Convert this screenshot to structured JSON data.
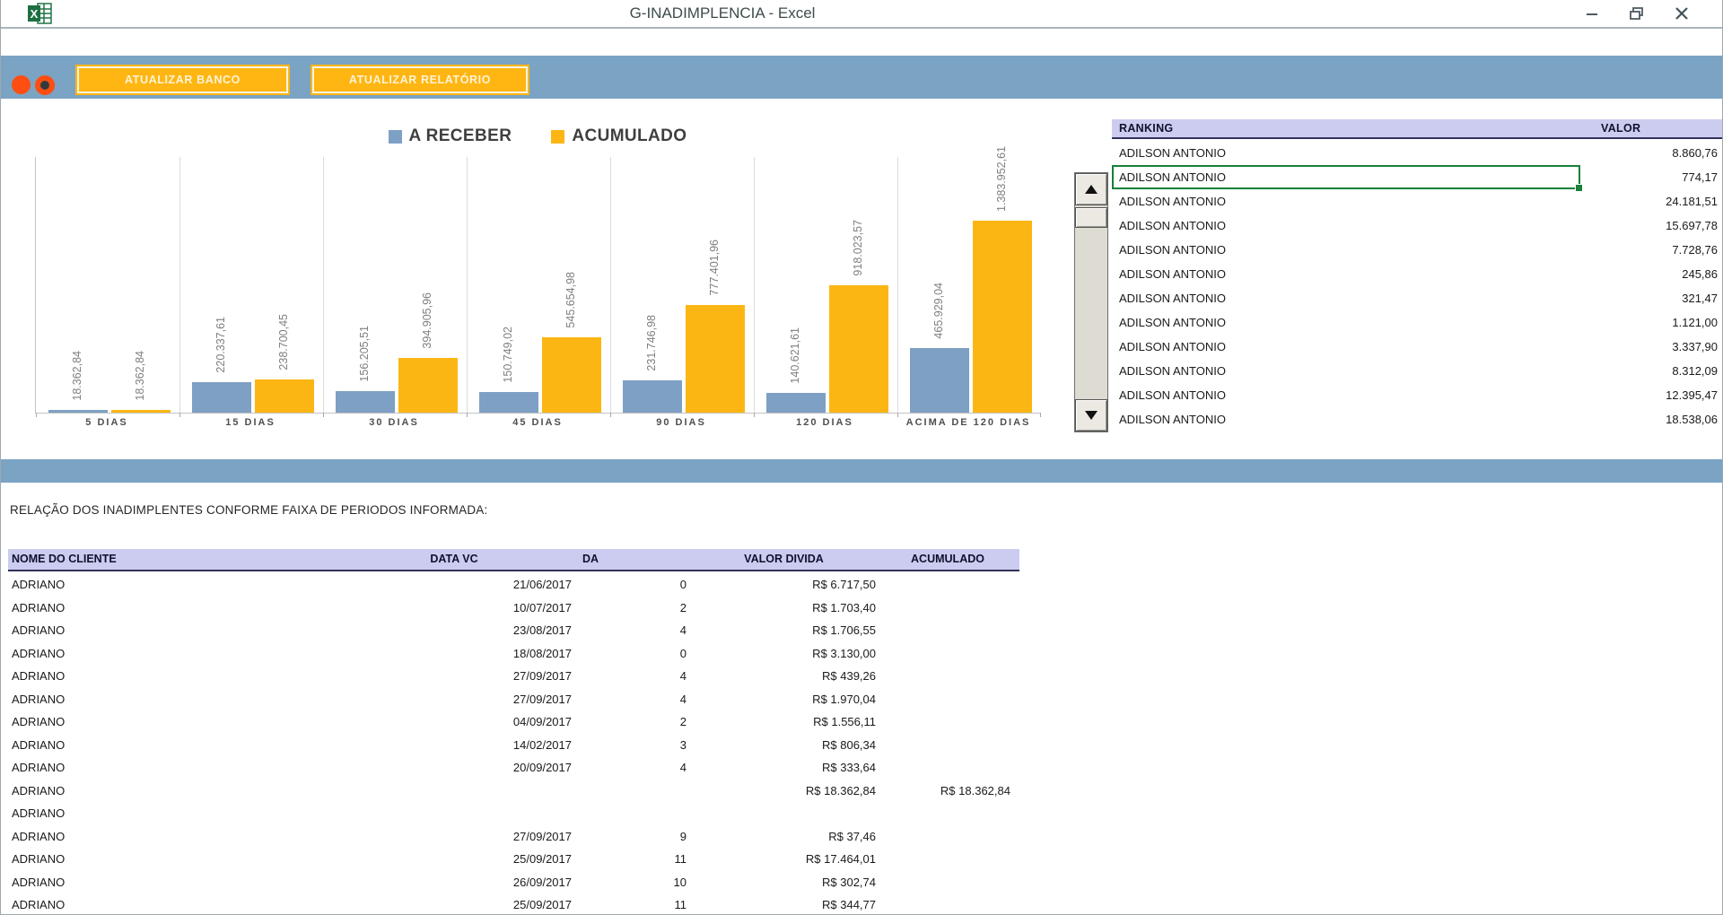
{
  "window": {
    "title": "G-INADIMPLENCIA - Excel"
  },
  "toolbar": {
    "buttons": [
      {
        "label": "ATUALIZAR BANCO"
      },
      {
        "label": "ATUALIZAR RELATÓRIO"
      }
    ]
  },
  "colors": {
    "toolbar_blue": "#7BA3C3",
    "button_orange": "#FFB612",
    "circle_red": "#FF4E12",
    "series_blue": "#7EA0C4",
    "series_orange": "#FCB614",
    "table_header_lavender": "#CCCCF0",
    "selection_green": "#188038"
  },
  "chart_data": {
    "type": "bar",
    "title": "",
    "xlabel": "",
    "ylabel": "",
    "legend_position": "top-center",
    "grid": "vertical category separators only",
    "ylim": [
      0,
      1450000
    ],
    "categories": [
      "5 DIAS",
      "15 DIAS",
      "30 DIAS",
      "45 DIAS",
      "90 DIAS",
      "120 DIAS",
      "ACIMA DE 120 DIAS"
    ],
    "series": [
      {
        "name": "A RECEBER",
        "color": "#7EA0C4",
        "values": [
          18362.84,
          220337.61,
          156205.51,
          150749.02,
          231746.98,
          140621.61,
          465929.04
        ],
        "labels": [
          "18.362,84",
          "220.337,61",
          "156.205,51",
          "150.749,02",
          "231.746,98",
          "140.621,61",
          "465.929,04"
        ]
      },
      {
        "name": "ACUMULADO",
        "color": "#FCB614",
        "values": [
          18362.84,
          238700.45,
          394905.96,
          545654.98,
          777401.96,
          918023.57,
          1383952.61
        ],
        "labels": [
          "18.362,84",
          "238.700,45",
          "394.905,96",
          "545.654,98",
          "777.401,96",
          "918.023,57",
          "1.383.952,61"
        ]
      }
    ]
  },
  "ranking": {
    "headers": {
      "name": "RANKING",
      "value": "VALOR"
    },
    "selected_index": 1,
    "rows": [
      {
        "name": "ADILSON ANTONIO",
        "value": "8.860,76"
      },
      {
        "name": "ADILSON ANTONIO",
        "value": "774,17"
      },
      {
        "name": "ADILSON ANTONIO",
        "value": "24.181,51"
      },
      {
        "name": "ADILSON ANTONIO",
        "value": "15.697,78"
      },
      {
        "name": "ADILSON ANTONIO",
        "value": "7.728,76"
      },
      {
        "name": "ADILSON ANTONIO",
        "value": "245,86"
      },
      {
        "name": "ADILSON ANTONIO",
        "value": "321,47"
      },
      {
        "name": "ADILSON ANTONIO",
        "value": "1.121,00"
      },
      {
        "name": "ADILSON ANTONIO",
        "value": "3.337,90"
      },
      {
        "name": "ADILSON ANTONIO",
        "value": "8.312,09"
      },
      {
        "name": "ADILSON ANTONIO",
        "value": "12.395,47"
      },
      {
        "name": "ADILSON ANTONIO",
        "value": "18.538,06"
      }
    ]
  },
  "lower": {
    "caption": "RELAÇÃO DOS INADIMPLENTES CONFORME FAIXA DE PERIODOS INFORMADA:",
    "headers": [
      "NOME DO CLIENTE",
      "DATA VC",
      "DA",
      "VALOR DIVIDA",
      "ACUMULADO"
    ],
    "rows": [
      [
        "ADRIANO",
        "21/06/2017",
        "0",
        "R$ 6.717,50",
        ""
      ],
      [
        "ADRIANO",
        "10/07/2017",
        "2",
        "R$ 1.703,40",
        ""
      ],
      [
        "ADRIANO",
        "23/08/2017",
        "4",
        "R$ 1.706,55",
        ""
      ],
      [
        "ADRIANO",
        "18/08/2017",
        "0",
        "R$ 3.130,00",
        ""
      ],
      [
        "ADRIANO",
        "27/09/2017",
        "4",
        "R$ 439,26",
        ""
      ],
      [
        "ADRIANO",
        "27/09/2017",
        "4",
        "R$ 1.970,04",
        ""
      ],
      [
        "ADRIANO",
        "04/09/2017",
        "2",
        "R$ 1.556,11",
        ""
      ],
      [
        "ADRIANO",
        "14/02/2017",
        "3",
        "R$ 806,34",
        ""
      ],
      [
        "ADRIANO",
        "20/09/2017",
        "4",
        "R$ 333,64",
        ""
      ],
      [
        "ADRIANO",
        "",
        "",
        "R$ 18.362,84",
        "R$ 18.362,84"
      ],
      [
        "ADRIANO",
        "",
        "",
        "",
        ""
      ],
      [
        "ADRIANO",
        "27/09/2017",
        "9",
        "R$ 37,46",
        ""
      ],
      [
        "ADRIANO",
        "25/09/2017",
        "11",
        "R$ 17.464,01",
        ""
      ],
      [
        "ADRIANO",
        "26/09/2017",
        "10",
        "R$ 302,74",
        ""
      ],
      [
        "ADRIANO",
        "25/09/2017",
        "11",
        "R$ 344,77",
        ""
      ]
    ]
  }
}
